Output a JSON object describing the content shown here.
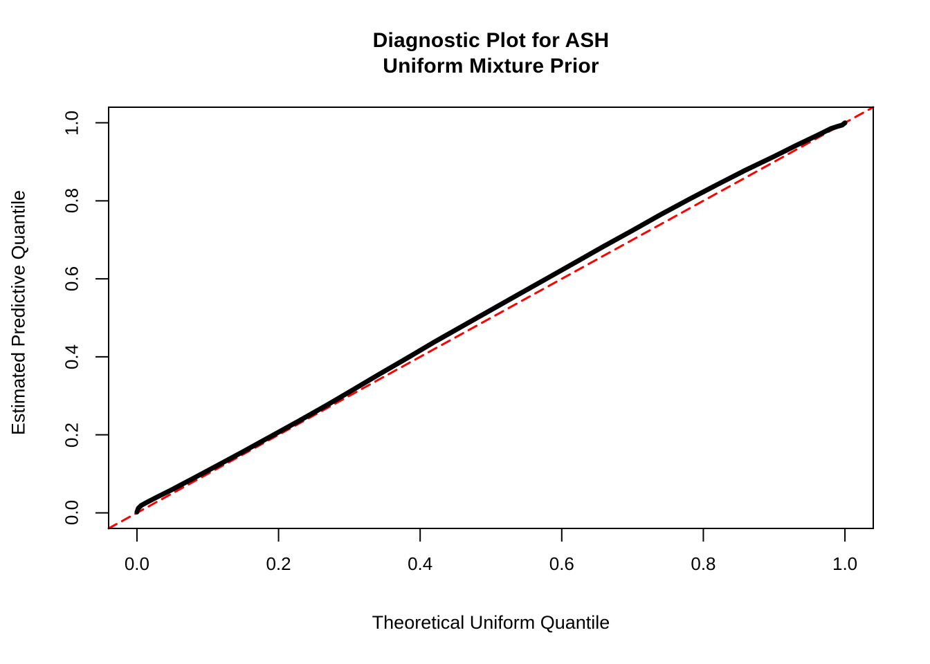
{
  "chart_data": {
    "type": "line",
    "title_lines": [
      "Diagnostic Plot for ASH",
      "Uniform Mixture Prior"
    ],
    "title": "Diagnostic Plot for ASH\nUniform Mixture Prior",
    "xlabel": "Theoretical Uniform Quantile",
    "ylabel": "Estimated Predictive Quantile",
    "xlim": [
      -0.04,
      1.04
    ],
    "ylim": [
      -0.04,
      1.04
    ],
    "x_ticks": [
      "0.0",
      "0.2",
      "0.4",
      "0.6",
      "0.8",
      "1.0"
    ],
    "y_ticks": [
      "0.0",
      "0.2",
      "0.4",
      "0.6",
      "0.8",
      "1.0"
    ],
    "x_tick_values": [
      0,
      0.2,
      0.4,
      0.6,
      0.8,
      1.0
    ],
    "y_tick_values": [
      0,
      0.2,
      0.4,
      0.6,
      0.8,
      1.0
    ],
    "grid": false,
    "legend_position": "none",
    "colors": {
      "background": "#ffffff",
      "axis": "#000000",
      "curve": "#000000",
      "reference_line": "#ff0000"
    },
    "series": [
      {
        "name": "estimated-vs-theoretical-quantile-curve",
        "type": "line",
        "color": "#000000",
        "stroke_width": 7,
        "dashed": false,
        "points": [
          [
            0.0,
            0.002
          ],
          [
            0.002,
            0.012
          ],
          [
            0.006,
            0.019
          ],
          [
            0.015,
            0.028
          ],
          [
            0.03,
            0.042
          ],
          [
            0.05,
            0.06
          ],
          [
            0.08,
            0.089
          ],
          [
            0.11,
            0.118
          ],
          [
            0.15,
            0.157
          ],
          [
            0.19,
            0.197
          ],
          [
            0.23,
            0.237
          ],
          [
            0.27,
            0.278
          ],
          [
            0.3,
            0.31
          ],
          [
            0.34,
            0.353
          ],
          [
            0.38,
            0.395
          ],
          [
            0.42,
            0.438
          ],
          [
            0.46,
            0.479
          ],
          [
            0.5,
            0.52
          ],
          [
            0.54,
            0.561
          ],
          [
            0.58,
            0.602
          ],
          [
            0.62,
            0.643
          ],
          [
            0.66,
            0.684
          ],
          [
            0.7,
            0.724
          ],
          [
            0.74,
            0.765
          ],
          [
            0.78,
            0.804
          ],
          [
            0.82,
            0.842
          ],
          [
            0.86,
            0.879
          ],
          [
            0.9,
            0.914
          ],
          [
            0.93,
            0.941
          ],
          [
            0.96,
            0.967
          ],
          [
            0.98,
            0.985
          ],
          [
            0.99,
            0.991
          ],
          [
            0.996,
            0.994
          ],
          [
            1.0,
            1.0
          ]
        ]
      },
      {
        "name": "identity-reference-line",
        "type": "line",
        "color": "#ff0000",
        "stroke_width": 3,
        "dashed": true,
        "dash_pattern": "13 9",
        "points": [
          [
            -0.04,
            -0.04
          ],
          [
            1.04,
            1.04
          ]
        ]
      }
    ]
  }
}
